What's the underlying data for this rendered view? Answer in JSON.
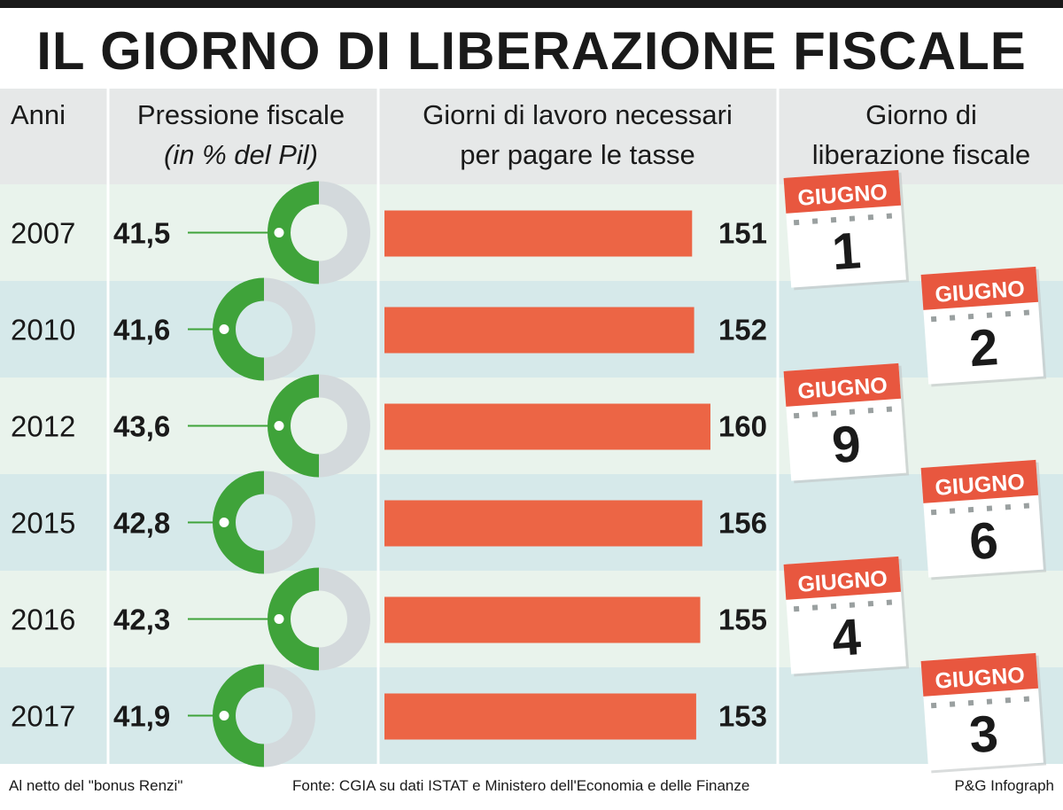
{
  "title": "IL GIORNO DI LIBERAZIONE FISCALE",
  "headers": {
    "years": "Anni",
    "pressure_line1": "Pressione fiscale",
    "pressure_line2": "(in % del Pil)",
    "days_line1": "Giorni di lavoro necessari",
    "days_line2": "per pagare le tasse",
    "liberation_line1": "Giorno di",
    "liberation_line2": "liberazione fiscale"
  },
  "chart_data": {
    "type": "bar",
    "categories": [
      "2007",
      "2010",
      "2012",
      "2015",
      "2016",
      "2017"
    ],
    "series": [
      {
        "name": "Pressione fiscale",
        "values": [
          41.5,
          41.6,
          43.6,
          42.8,
          42.3,
          41.9
        ],
        "labels": [
          "41,5",
          "41,6",
          "43,6",
          "42,8",
          "42,3",
          "41,9"
        ]
      },
      {
        "name": "Giorni di lavoro necessari per pagare le tasse",
        "values": [
          151,
          152,
          160,
          156,
          155,
          153
        ]
      }
    ],
    "liberation_day": {
      "month": "GIUGNO",
      "days": [
        "1",
        "2",
        "9",
        "6",
        "4",
        "3"
      ]
    }
  },
  "footer": {
    "note": "Al netto del \"bonus Renzi\"",
    "source": "Fonte: CGIA su dati ISTAT e Ministero dell'Economia e delle Finanze",
    "credit": "P&G Infograph"
  },
  "colors": {
    "header_bg": "#e6e8e8",
    "row_even": "#e9f3ec",
    "row_odd": "#d6e9ea",
    "bar": "#ec6545",
    "donut_fill": "#3fa33a",
    "donut_rest": "#d3d9dc",
    "calendar_red": "#e8573f"
  }
}
